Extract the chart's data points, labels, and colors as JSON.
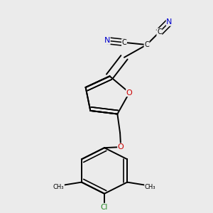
{
  "bg_color": "#ebebeb",
  "bond_color": "#000000",
  "bond_width": 1.4,
  "N_color": "#0000cc",
  "O_color": "#cc0000",
  "Cl_color": "#228822",
  "C_color": "#000000",
  "label_fontsize": 8.0,
  "figsize": [
    3.0,
    3.0
  ],
  "dpi": 100,
  "xlim": [
    0.1,
    0.9
  ],
  "ylim": [
    0.05,
    0.97
  ]
}
